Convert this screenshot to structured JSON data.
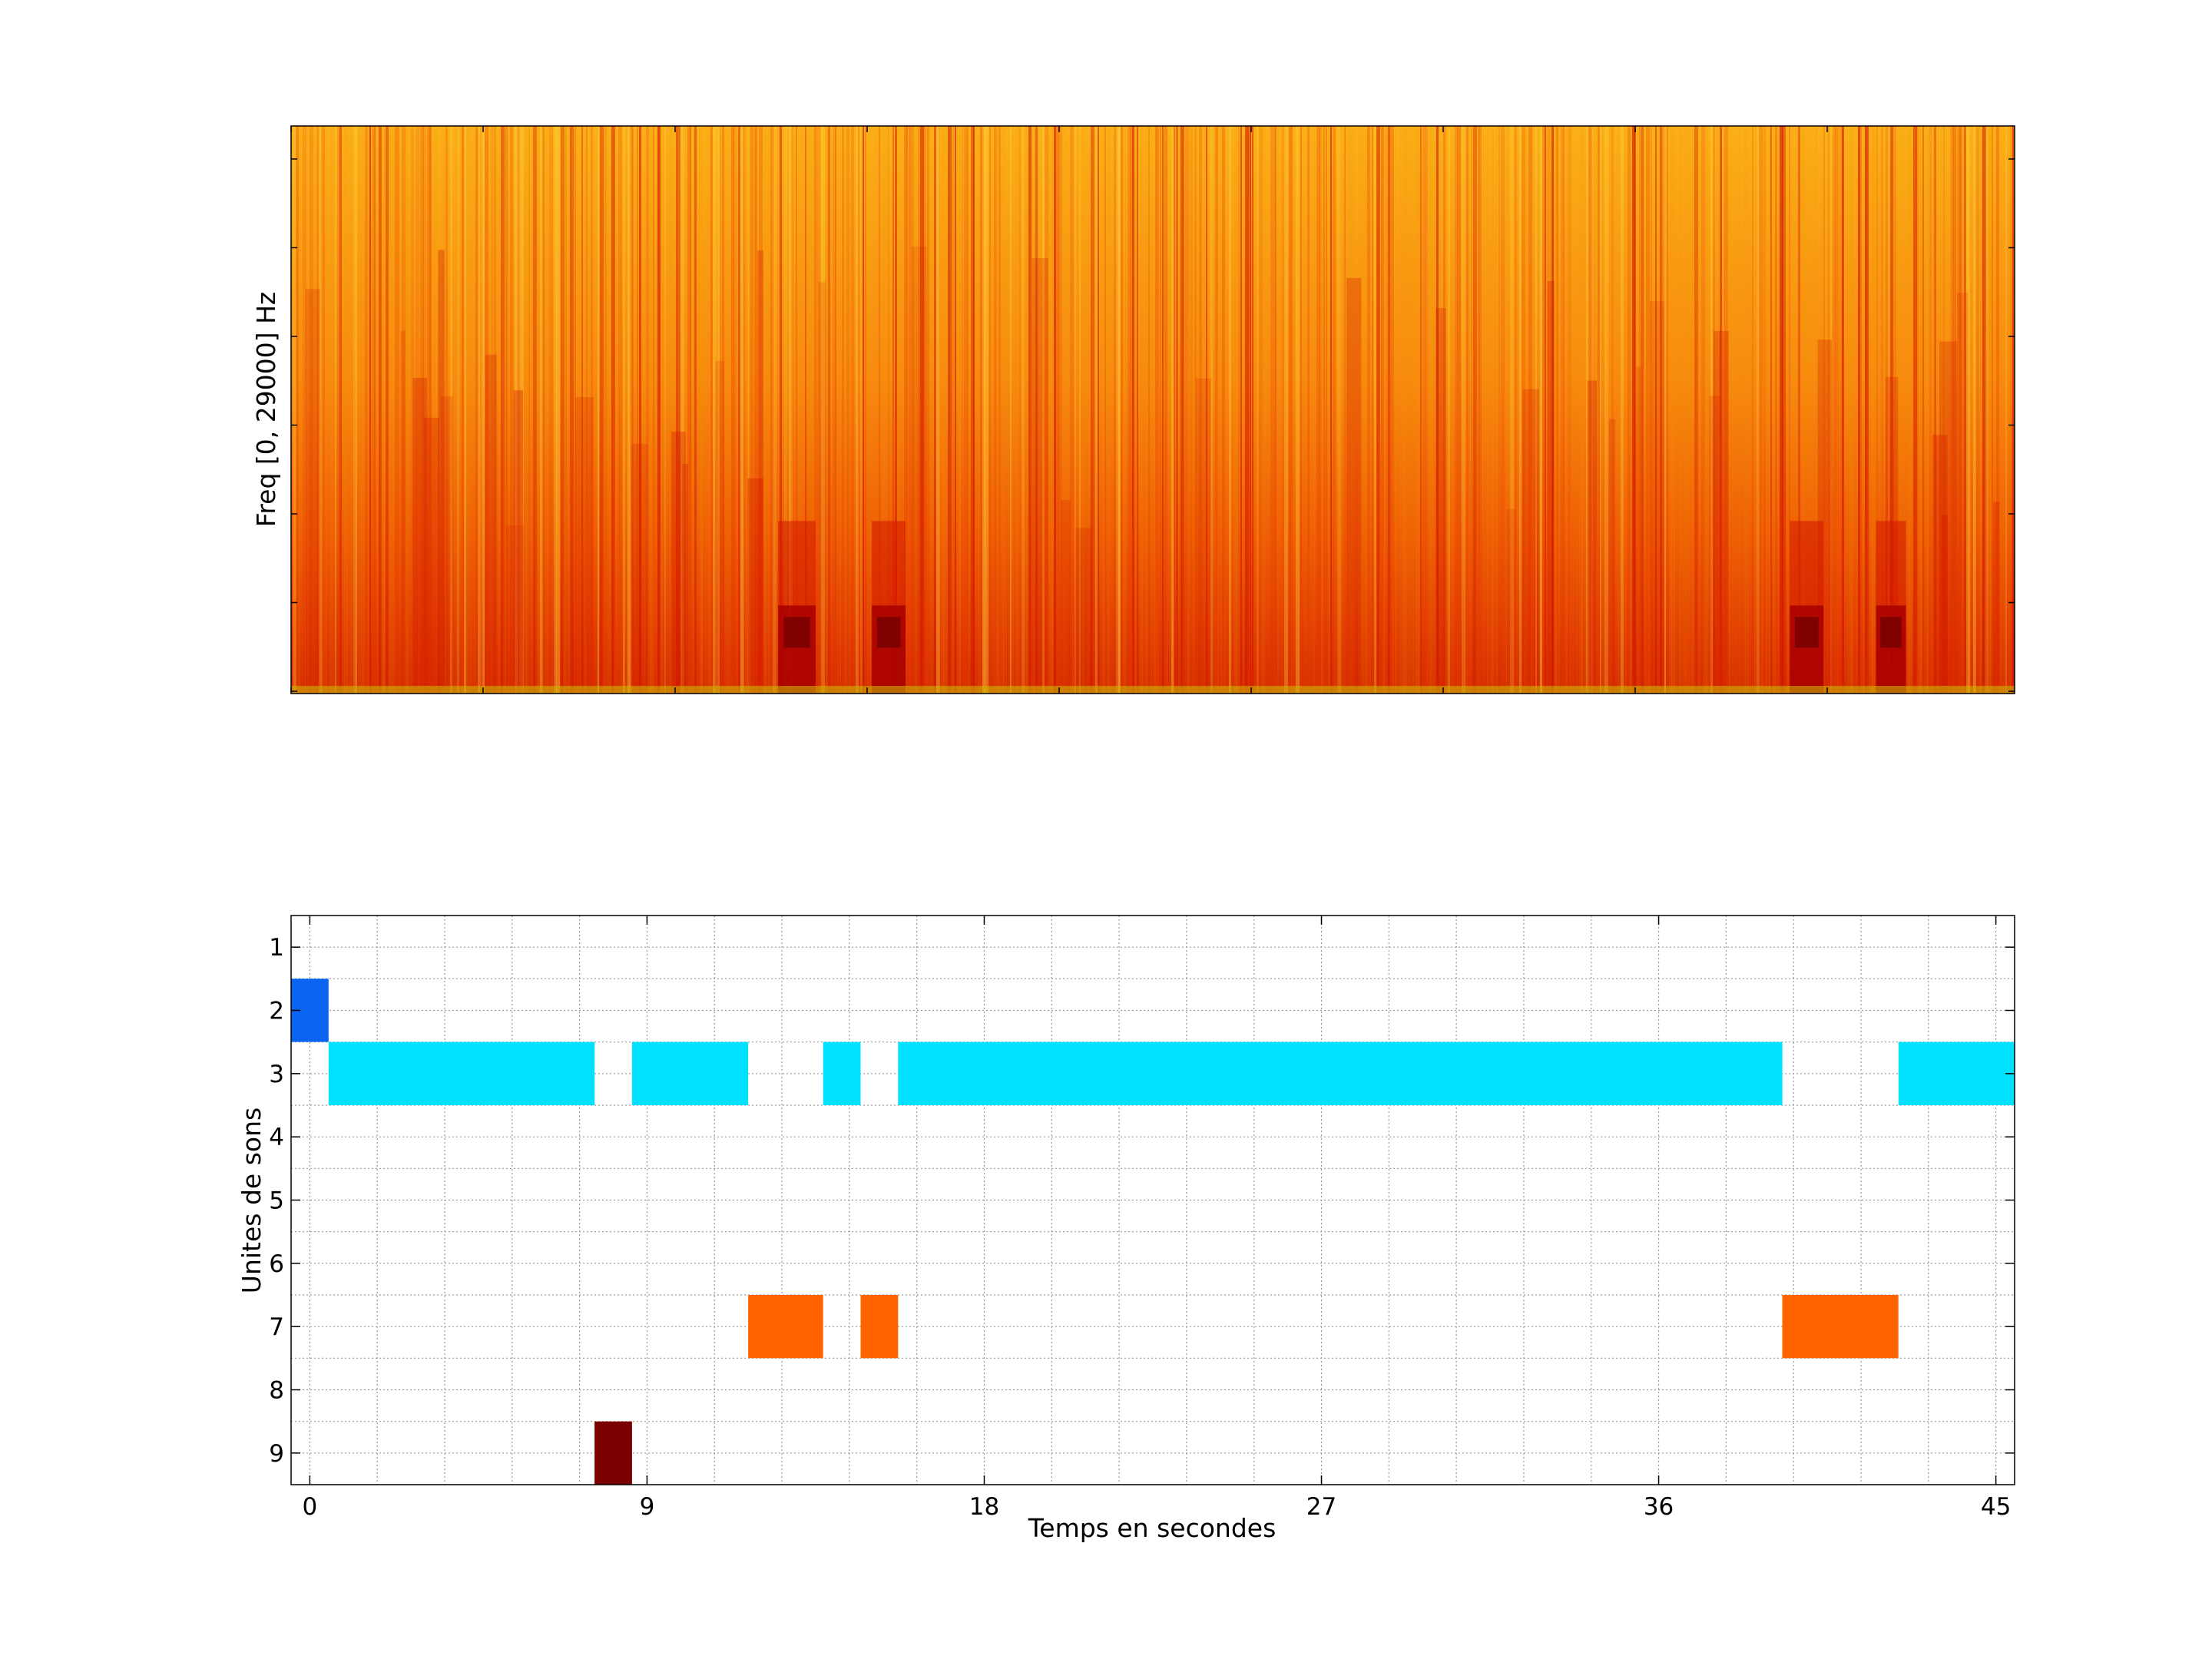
{
  "chart_data": [
    {
      "type": "heatmap",
      "title": "",
      "ylabel": "Freq [0, 29000] Hz",
      "xlabel": "",
      "xlim": [
        -0.5,
        45.5
      ],
      "ylim": [
        0,
        29000
      ],
      "colormap": [
        "#6b0000",
        "#a80000",
        "#d21400",
        "#ea3c00",
        "#f46a00",
        "#fa9400",
        "#ffb400",
        "#ffd23c"
      ],
      "axis_color": "#000000",
      "tick_labels_shown": false,
      "dark_events": [
        {
          "start_s": 12.5,
          "end_s": 13.5,
          "freq_max_hz": 4500
        },
        {
          "start_s": 15.0,
          "end_s": 15.9,
          "freq_max_hz": 4500
        },
        {
          "start_s": 39.5,
          "end_s": 40.4,
          "freq_max_hz": 4500
        },
        {
          "start_s": 41.8,
          "end_s": 42.6,
          "freq_max_hz": 4500
        }
      ]
    },
    {
      "type": "bar",
      "orientation": "horizontal-segments",
      "title": "",
      "xlabel": "Temps en secondes",
      "ylabel": "Unites de sons",
      "xlim": [
        -0.5,
        45.5
      ],
      "ylim": [
        0.5,
        9.5
      ],
      "xticks": [
        0,
        9,
        18,
        27,
        36,
        45
      ],
      "yticks": [
        1,
        2,
        3,
        4,
        5,
        6,
        7,
        8,
        9
      ],
      "grid": true,
      "segments": [
        {
          "unit": 2,
          "start": -0.5,
          "end": 0.5,
          "color": "#0a64f0"
        },
        {
          "unit": 3,
          "start": 0.5,
          "end": 7.6,
          "color": "#00e1ff"
        },
        {
          "unit": 3,
          "start": 8.6,
          "end": 11.7,
          "color": "#00e1ff"
        },
        {
          "unit": 3,
          "start": 13.7,
          "end": 14.7,
          "color": "#00e1ff"
        },
        {
          "unit": 3,
          "start": 15.7,
          "end": 39.3,
          "color": "#00e1ff"
        },
        {
          "unit": 3,
          "start": 42.4,
          "end": 45.5,
          "color": "#00e1ff"
        },
        {
          "unit": 7,
          "start": 11.7,
          "end": 13.7,
          "color": "#ff6400"
        },
        {
          "unit": 7,
          "start": 14.7,
          "end": 15.7,
          "color": "#ff6400"
        },
        {
          "unit": 7,
          "start": 39.3,
          "end": 42.4,
          "color": "#ff6400"
        },
        {
          "unit": 9,
          "start": 7.6,
          "end": 8.6,
          "color": "#780000"
        }
      ]
    }
  ]
}
